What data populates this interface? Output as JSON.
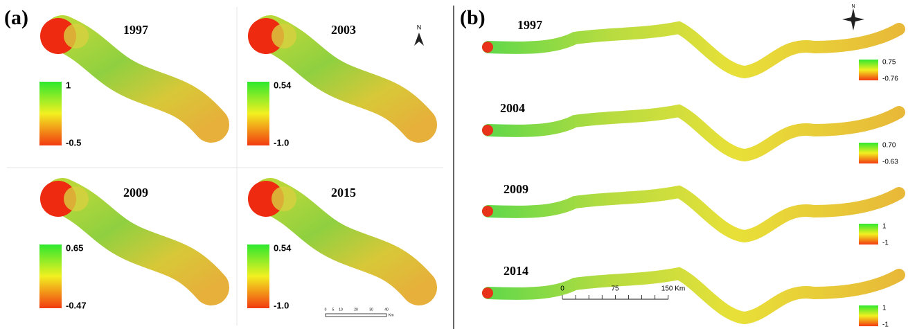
{
  "panel_a": {
    "label": "(a)",
    "north": "N",
    "maps": [
      {
        "year": "1997",
        "legend_max": "1",
        "legend_min": "-0.5"
      },
      {
        "year": "2003",
        "legend_max": "0.54",
        "legend_min": "-1.0"
      },
      {
        "year": "2009",
        "legend_max": "0.65",
        "legend_min": "-0.47"
      },
      {
        "year": "2015",
        "legend_max": "0.54",
        "legend_min": "-1.0"
      }
    ],
    "scale_labels": [
      "0",
      "5",
      "10",
      "20",
      "30",
      "40"
    ],
    "scale_unit": "Km"
  },
  "panel_b": {
    "label": "(b)",
    "north": "N",
    "maps": [
      {
        "year": "1997",
        "legend_max": "0.75",
        "legend_min": "-0.76"
      },
      {
        "year": "2004",
        "legend_max": "0.70",
        "legend_min": "-0.63"
      },
      {
        "year": "2009",
        "legend_max": "1",
        "legend_min": "-1"
      },
      {
        "year": "2014",
        "legend_max": "1",
        "legend_min": "-1"
      }
    ],
    "scale_labels": [
      "0",
      "75",
      "150 Km"
    ]
  }
}
